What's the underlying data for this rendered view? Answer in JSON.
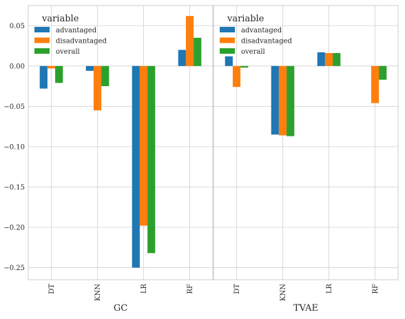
{
  "chart_data": [
    {
      "type": "bar",
      "xlabel": "GC",
      "categories": [
        "DT",
        "KNN",
        "LR",
        "RF"
      ],
      "series": [
        {
          "name": "advantaged",
          "color": "#1f77b4",
          "values": [
            -0.028,
            -0.006,
            -0.25,
            0.02
          ]
        },
        {
          "name": "disadvantaged",
          "color": "#ff7f0e",
          "values": [
            -0.003,
            -0.055,
            -0.198,
            0.062
          ]
        },
        {
          "name": "overall",
          "color": "#2ca02c",
          "values": [
            -0.021,
            -0.025,
            -0.232,
            0.035
          ]
        }
      ],
      "ylim": [
        -0.265,
        0.075
      ],
      "yticks": [
        0.05,
        0.0,
        -0.05,
        -0.1,
        -0.15,
        -0.2,
        -0.25
      ],
      "ytick_labels": [
        "0.05",
        "0.00",
        "−0.05",
        "−0.10",
        "−0.15",
        "−0.20",
        "−0.25"
      ],
      "legend": {
        "title": "variable",
        "placement": "top-left"
      },
      "grid": true
    },
    {
      "type": "bar",
      "xlabel": "TVAE",
      "categories": [
        "DT",
        "KNN",
        "LR",
        "RF"
      ],
      "series": [
        {
          "name": "advantaged",
          "color": "#1f77b4",
          "values": [
            0.012,
            -0.085,
            0.017,
            0.0
          ]
        },
        {
          "name": "disadvantaged",
          "color": "#ff7f0e",
          "values": [
            -0.026,
            -0.086,
            0.016,
            -0.046
          ]
        },
        {
          "name": "overall",
          "color": "#2ca02c",
          "values": [
            -0.002,
            -0.087,
            0.016,
            -0.017
          ]
        }
      ],
      "ylim": [
        -0.265,
        0.075
      ],
      "legend": {
        "title": "variable",
        "placement": "top-left"
      },
      "grid": true
    }
  ]
}
